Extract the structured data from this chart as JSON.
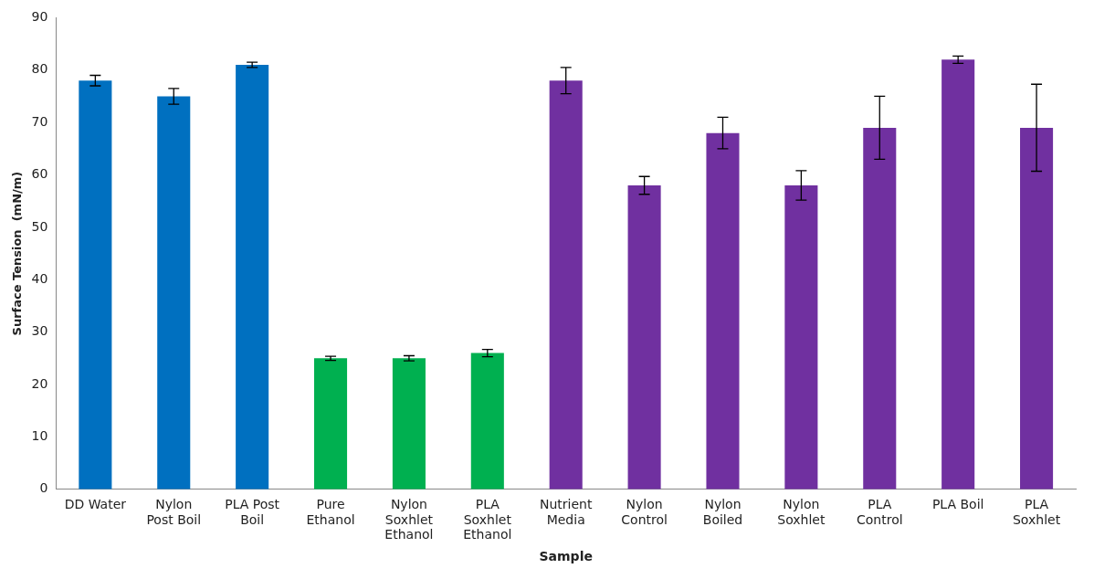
{
  "chart_data": {
    "type": "bar",
    "xlabel": "Sample",
    "ylabel": "Surface Tension  (mN/m)",
    "categories": [
      "DD Water",
      "Nylon Post Boil",
      "PLA Post Boil",
      "Pure Ethanol",
      "Nylon Soxhlet Ethanol",
      "PLA Soxhlet Ethanol",
      "Nutrient Media",
      "Nylon Control",
      "Nylon Boiled",
      "Nylon Soxhlet",
      "PLA Control",
      "PLA Boil",
      "PLA Soxhlet"
    ],
    "values": [
      78,
      75,
      81,
      25,
      25,
      26,
      78,
      58,
      68,
      58,
      69,
      82,
      69
    ],
    "errors": [
      1,
      1.5,
      0.5,
      0.4,
      0.5,
      0.7,
      2.5,
      1.7,
      3,
      2.8,
      6,
      0.7,
      8.3
    ],
    "colors": [
      "#0070c0",
      "#0070c0",
      "#0070c0",
      "#00b050",
      "#00b050",
      "#00b050",
      "#7030a0",
      "#7030a0",
      "#7030a0",
      "#7030a0",
      "#7030a0",
      "#7030a0",
      "#7030a0"
    ],
    "ylim": [
      0,
      90
    ],
    "yticks": [
      0,
      10,
      20,
      30,
      40,
      50,
      60,
      70,
      80,
      90
    ],
    "grid": false,
    "legend": false
  }
}
